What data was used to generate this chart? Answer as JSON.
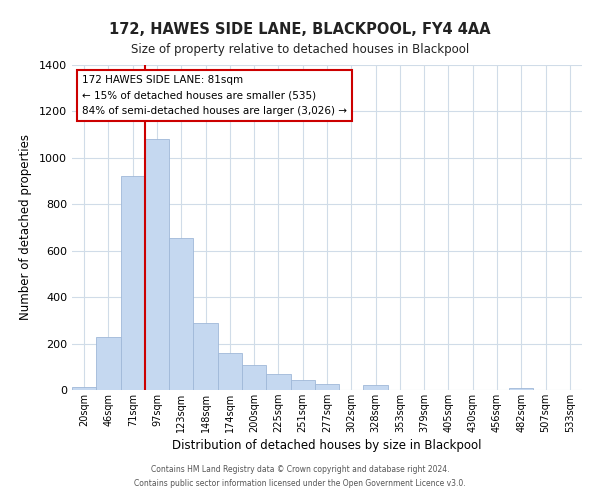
{
  "title": "172, HAWES SIDE LANE, BLACKPOOL, FY4 4AA",
  "subtitle": "Size of property relative to detached houses in Blackpool",
  "xlabel": "Distribution of detached houses by size in Blackpool",
  "ylabel": "Number of detached properties",
  "bar_labels": [
    "20sqm",
    "46sqm",
    "71sqm",
    "97sqm",
    "123sqm",
    "148sqm",
    "174sqm",
    "200sqm",
    "225sqm",
    "251sqm",
    "277sqm",
    "302sqm",
    "328sqm",
    "353sqm",
    "379sqm",
    "405sqm",
    "430sqm",
    "456sqm",
    "482sqm",
    "507sqm",
    "533sqm"
  ],
  "bar_values": [
    15,
    230,
    920,
    1080,
    655,
    290,
    160,
    108,
    70,
    42,
    25,
    0,
    20,
    0,
    0,
    0,
    0,
    0,
    10,
    0,
    0
  ],
  "bar_color": "#c5d8f0",
  "bar_edge_color": "#a0b8d8",
  "vline_color": "#cc0000",
  "ylim": [
    0,
    1400
  ],
  "yticks": [
    0,
    200,
    400,
    600,
    800,
    1000,
    1200,
    1400
  ],
  "annotation_title": "172 HAWES SIDE LANE: 81sqm",
  "annotation_line1": "← 15% of detached houses are smaller (535)",
  "annotation_line2": "84% of semi-detached houses are larger (3,026) →",
  "footer1": "Contains HM Land Registry data © Crown copyright and database right 2024.",
  "footer2": "Contains public sector information licensed under the Open Government Licence v3.0.",
  "background_color": "#ffffff",
  "grid_color": "#d0dce8"
}
